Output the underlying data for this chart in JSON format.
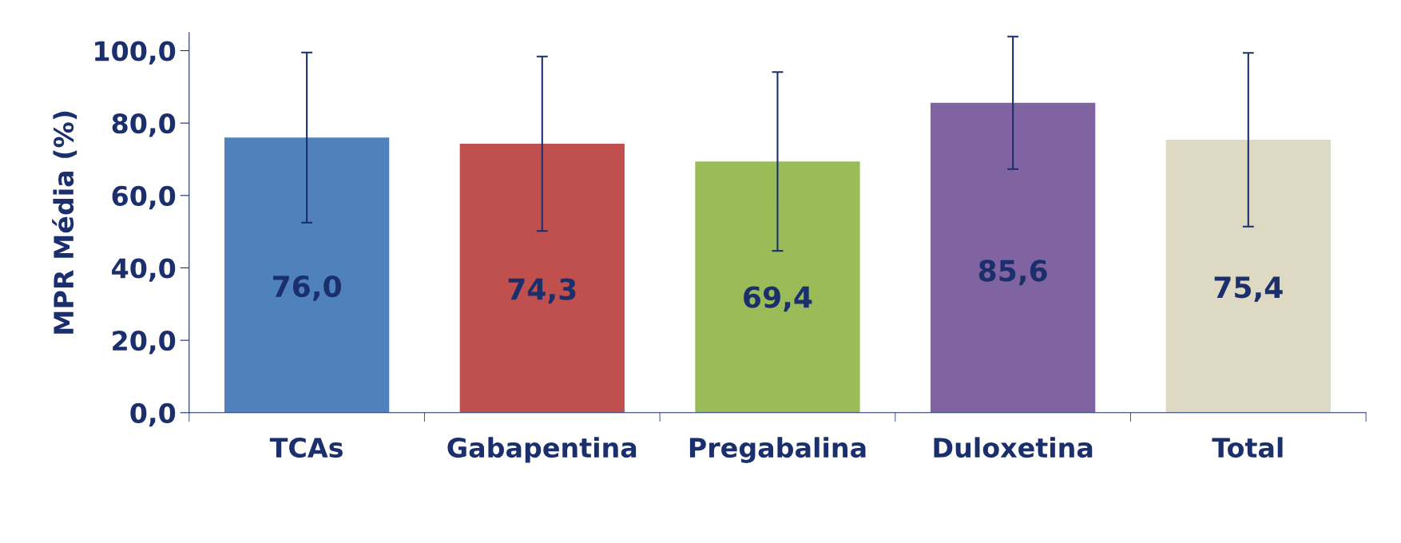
{
  "chart_data": {
    "type": "bar",
    "ylabel": "MPR Média (%)",
    "categories": [
      "TCAs",
      "Gabapentina",
      "Pregabalina",
      "Duloxetina",
      "Total"
    ],
    "values": [
      76.0,
      74.3,
      69.4,
      85.6,
      75.4
    ],
    "value_labels": [
      "76,0",
      "74,3",
      "69,4",
      "85,6",
      "75,4"
    ],
    "colors": [
      "#4f81bd",
      "#c0504d",
      "#9bbb59",
      "#8064a2",
      "#ddd9c3"
    ],
    "errors": [
      23.5,
      24.1,
      24.7,
      18.3,
      24.0
    ],
    "ylim": [
      0,
      105
    ],
    "yticks": [
      {
        "value": 0,
        "label": "0,0"
      },
      {
        "value": 20,
        "label": "20,0"
      },
      {
        "value": 40,
        "label": "40,0"
      },
      {
        "value": 60,
        "label": "60,0"
      },
      {
        "value": 80,
        "label": "80,0"
      },
      {
        "value": 100,
        "label": "100,0"
      }
    ],
    "grid": false,
    "legend": false
  }
}
